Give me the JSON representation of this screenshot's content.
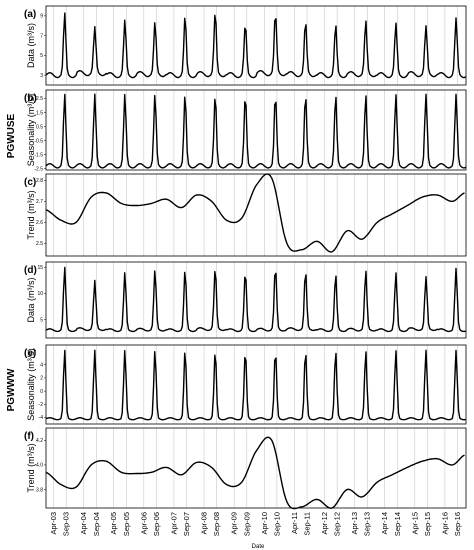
{
  "figure": {
    "group_labels": [
      "PGWUSE",
      "PGWWW"
    ],
    "xlabel": "Date",
    "x_ticks": [
      "Apr-03",
      "Sep-03",
      "Apr-04",
      "Sep-04",
      "Apr-05",
      "Sep-05",
      "Apr-06",
      "Sep-06",
      "Apr-07",
      "Sep-07",
      "Apr-08",
      "Sep-08",
      "Apr-09",
      "Sep-09",
      "Apr-10",
      "Sep-10",
      "Apr-11",
      "Sep-11",
      "Apr-12",
      "Sep-12",
      "Apr-13",
      "Sep-13",
      "Apr-14",
      "Sep-14",
      "Apr-15",
      "Sep-15",
      "Apr-16",
      "Sep-16"
    ]
  },
  "chart_data": [
    {
      "panel": "(a)",
      "type": "line",
      "ylabel": "Data (m³/s)",
      "ytick_labels": [
        "9",
        "7",
        "5",
        "3"
      ],
      "ylim": [
        2,
        10
      ],
      "x": [
        2003,
        2016.9
      ],
      "annual_peaks": [
        9.3,
        7.9,
        8.6,
        8.4,
        9.0,
        9.5,
        8.3,
        9.4,
        8.5,
        8.2,
        8.6,
        8.3,
        8.0,
        8.8
      ],
      "annual_troughs": [
        3.0,
        3.2,
        3.0,
        3.1,
        3.0,
        3.1,
        3.0,
        3.2,
        3.1,
        3.0,
        3.1,
        3.0,
        3.1,
        3.0,
        3.6
      ]
    },
    {
      "panel": "(b)",
      "type": "line",
      "ylabel": "Seasonality (m³/s)",
      "ytick_labels": [
        "2.5",
        "1.5",
        "0.5",
        "-0.5",
        "-1.5",
        "-2.5"
      ],
      "ylim": [
        -2.6,
        3.1
      ],
      "x": [
        2003,
        2016.9
      ],
      "seasonal_max": 2.8,
      "seasonal_min": -2.3
    },
    {
      "panel": "(c)",
      "type": "line",
      "ylabel": "Trend (m³/s)",
      "ytick_labels": [
        "2.8",
        "2.7",
        "2.6",
        "2.5"
      ],
      "ylim": [
        2.44,
        2.83
      ],
      "x": [
        2003.0,
        2003.5,
        2004.0,
        2004.5,
        2005.0,
        2005.5,
        2006.0,
        2006.5,
        2007.0,
        2007.5,
        2008.0,
        2008.5,
        2009.0,
        2009.5,
        2010.0,
        2010.5,
        2011.0,
        2011.5,
        2012.0,
        2012.5,
        2013.0,
        2013.5,
        2014.0,
        2014.5,
        2015.0,
        2015.5,
        2016.0,
        2016.5,
        2016.9
      ],
      "y": [
        2.66,
        2.61,
        2.6,
        2.72,
        2.74,
        2.69,
        2.68,
        2.69,
        2.71,
        2.67,
        2.73,
        2.7,
        2.61,
        2.62,
        2.78,
        2.81,
        2.5,
        2.47,
        2.51,
        2.46,
        2.56,
        2.52,
        2.6,
        2.64,
        2.68,
        2.72,
        2.73,
        2.7,
        2.74
      ]
    },
    {
      "panel": "(d)",
      "type": "line",
      "ylabel": "Data (m³/s)",
      "ytick_labels": [
        "15",
        "10",
        "5"
      ],
      "ylim": [
        1.5,
        16
      ],
      "x": [
        2003,
        2016.9
      ],
      "annual_peaks": [
        15.0,
        12.5,
        14.0,
        14.5,
        14.5,
        15.0,
        14.3,
        15.2,
        14.4,
        13.8,
        14.5,
        14.0,
        13.2,
        14.8
      ],
      "annual_troughs": [
        3.0,
        3.2,
        3.0,
        3.1,
        3.0,
        3.2,
        3.0,
        3.1,
        3.2,
        3.0,
        3.1,
        3.0,
        3.2,
        3.0,
        4.5
      ]
    },
    {
      "panel": "(e)",
      "type": "line",
      "ylabel": "Seasonality (m³/s)",
      "ytick_labels": [
        "4",
        "2",
        "0",
        "-2",
        "-4"
      ],
      "ylim": [
        -5,
        7
      ],
      "x": [
        2003,
        2016.9
      ],
      "seasonal_max": 6.2,
      "seasonal_min": -4.2
    },
    {
      "panel": "(f)",
      "type": "line",
      "ylabel": "Trend (m³/s)",
      "ytick_labels": [
        "4.2",
        "4.0",
        "3.8"
      ],
      "ylim": [
        3.65,
        4.3
      ],
      "x": [
        2003.0,
        2003.5,
        2004.0,
        2004.5,
        2005.0,
        2005.5,
        2006.0,
        2006.5,
        2007.0,
        2007.5,
        2008.0,
        2008.5,
        2009.0,
        2009.5,
        2010.0,
        2010.5,
        2011.0,
        2011.5,
        2012.0,
        2012.5,
        2013.0,
        2013.5,
        2014.0,
        2014.5,
        2015.0,
        2015.5,
        2016.0,
        2016.5,
        2016.9
      ],
      "y": [
        3.94,
        3.84,
        3.82,
        4.0,
        4.03,
        3.94,
        3.93,
        3.94,
        3.98,
        3.92,
        4.02,
        3.98,
        3.84,
        3.86,
        4.12,
        4.2,
        3.7,
        3.66,
        3.72,
        3.65,
        3.8,
        3.74,
        3.86,
        3.92,
        3.98,
        4.03,
        4.05,
        4.0,
        4.08
      ]
    }
  ]
}
